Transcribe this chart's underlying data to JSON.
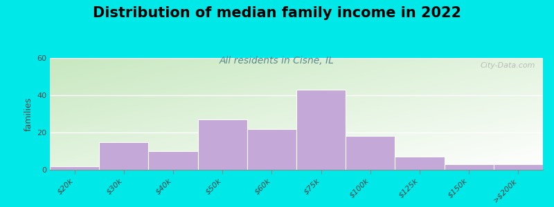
{
  "title": "Distribution of median family income in 2022",
  "subtitle": "All residents in Cisne, IL",
  "categories": [
    "$20k",
    "$30k",
    "$40k",
    "$50k",
    "$60k",
    "$75k",
    "$100k",
    "$125k",
    "$150k",
    ">$200k"
  ],
  "values": [
    2,
    15,
    10,
    27,
    22,
    43,
    18,
    7,
    3,
    3
  ],
  "bar_color": "#c4a8d8",
  "bar_edgecolor": "#c4a8d8",
  "ylabel": "families",
  "ylim": [
    0,
    60
  ],
  "yticks": [
    0,
    20,
    40,
    60
  ],
  "background_color": "#00e8e8",
  "title_fontsize": 15,
  "subtitle_fontsize": 10,
  "subtitle_color": "#5a8a8a",
  "watermark": "City-Data.com",
  "fig_width": 8.0,
  "fig_height": 3.0
}
